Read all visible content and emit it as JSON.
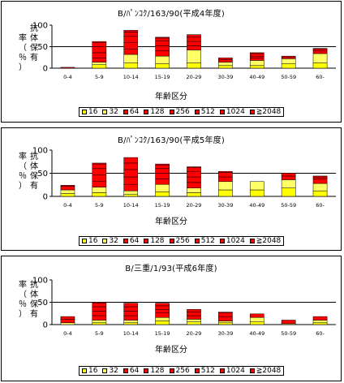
{
  "ylabel_chars": [
    "率",
    "（",
    "％",
    "）",
    "抗",
    "体",
    "保",
    "有"
  ],
  "xlabel": "年齢区分",
  "legend": [
    {
      "label": "16",
      "color": "#ffff00"
    },
    {
      "label": "32",
      "color": "#ffff66"
    },
    {
      "label": "64",
      "color": "#ff0000"
    },
    {
      "label": "128",
      "color": "#ff0000"
    },
    {
      "label": "256",
      "color": "#ff0000"
    },
    {
      "label": "512",
      "color": "#ff0000"
    },
    {
      "label": "1024",
      "color": "#ff0000"
    },
    {
      "label": "≧2048",
      "color": "#ff0000"
    }
  ],
  "chart_data": [
    {
      "type": "bar",
      "stacked": true,
      "title": "B/ﾊﾟﾝｺｸ/163/90(平成4年度)",
      "xlabel": "年齢区分",
      "ylabel": "抗体保有率(%)",
      "ylim": [
        0,
        100
      ],
      "yticks": [
        0,
        50,
        100
      ],
      "reference_line": 50,
      "categories": [
        "0-4",
        "5-9",
        "10-14",
        "15-19",
        "20-29",
        "30-39",
        "40-49",
        "50-59",
        "60-"
      ],
      "series": [
        {
          "name": "16",
          "values": [
            0,
            8,
            12,
            10,
            12,
            6,
            6,
            10,
            12
          ]
        },
        {
          "name": "32",
          "values": [
            0,
            6,
            20,
            18,
            30,
            8,
            12,
            12,
            22
          ]
        },
        {
          "name": "64",
          "values": [
            2,
            10,
            12,
            12,
            10,
            6,
            6,
            4,
            6
          ]
        },
        {
          "name": "128",
          "values": [
            0,
            12,
            16,
            12,
            10,
            4,
            4,
            2,
            4
          ]
        },
        {
          "name": "256",
          "values": [
            0,
            14,
            14,
            12,
            10,
            0,
            6,
            0,
            2
          ]
        },
        {
          "name": "512",
          "values": [
            0,
            10,
            10,
            6,
            6,
            0,
            2,
            0,
            0
          ]
        },
        {
          "name": "1024",
          "values": [
            0,
            2,
            4,
            2,
            0,
            0,
            0,
            0,
            0
          ]
        },
        {
          "name": "≧2048",
          "values": [
            0,
            0,
            0,
            0,
            0,
            0,
            0,
            0,
            0
          ]
        }
      ]
    },
    {
      "type": "bar",
      "stacked": true,
      "title": "B/ﾊﾟﾝｺｸ/163/90(平成5年度)",
      "xlabel": "年齢区分",
      "ylabel": "抗体保有率(%)",
      "ylim": [
        0,
        100
      ],
      "yticks": [
        0,
        50,
        100
      ],
      "reference_line": 50,
      "categories": [
        "0-4",
        "5-9",
        "10-14",
        "15-19",
        "20-29",
        "30-39",
        "40-49",
        "50-59",
        "60-"
      ],
      "series": [
        {
          "name": "16",
          "values": [
            6,
            8,
            4,
            10,
            8,
            14,
            14,
            18,
            12
          ]
        },
        {
          "name": "32",
          "values": [
            8,
            12,
            8,
            16,
            10,
            18,
            18,
            18,
            16
          ]
        },
        {
          "name": "64",
          "values": [
            8,
            12,
            14,
            12,
            12,
            10,
            0,
            8,
            10
          ]
        },
        {
          "name": "128",
          "values": [
            2,
            14,
            16,
            12,
            12,
            10,
            0,
            6,
            4
          ]
        },
        {
          "name": "256",
          "values": [
            0,
            14,
            16,
            10,
            12,
            2,
            0,
            0,
            2
          ]
        },
        {
          "name": "512",
          "values": [
            0,
            10,
            14,
            8,
            8,
            0,
            0,
            0,
            0
          ]
        },
        {
          "name": "1024",
          "values": [
            0,
            2,
            12,
            2,
            2,
            0,
            0,
            0,
            0
          ]
        },
        {
          "name": "≧2048",
          "values": [
            0,
            0,
            0,
            0,
            0,
            0,
            0,
            0,
            0
          ]
        }
      ]
    },
    {
      "type": "bar",
      "stacked": true,
      "title": "B/三重/1/93(平成6年度)",
      "xlabel": "年齢区分",
      "ylabel": "抗体保有率(%)",
      "ylim": [
        0,
        100
      ],
      "yticks": [
        0,
        50,
        100
      ],
      "reference_line": 50,
      "categories": [
        "0-4",
        "5-9",
        "10-14",
        "15-19",
        "20-29",
        "30-39",
        "40-49",
        "50-59",
        "60-"
      ],
      "series": [
        {
          "name": "16",
          "values": [
            0,
            4,
            4,
            8,
            6,
            4,
            6,
            0,
            4
          ]
        },
        {
          "name": "32",
          "values": [
            4,
            6,
            6,
            8,
            6,
            4,
            10,
            2,
            6
          ]
        },
        {
          "name": "64",
          "values": [
            8,
            10,
            10,
            10,
            8,
            10,
            8,
            8,
            8
          ]
        },
        {
          "name": "128",
          "values": [
            6,
            10,
            10,
            8,
            8,
            8,
            0,
            0,
            0
          ]
        },
        {
          "name": "256",
          "values": [
            0,
            10,
            10,
            8,
            6,
            2,
            0,
            0,
            0
          ]
        },
        {
          "name": "512",
          "values": [
            0,
            8,
            8,
            6,
            0,
            0,
            0,
            0,
            0
          ]
        },
        {
          "name": "1024",
          "values": [
            0,
            2,
            0,
            0,
            0,
            0,
            0,
            0,
            0
          ]
        },
        {
          "name": "≧2048",
          "values": [
            0,
            0,
            0,
            0,
            0,
            0,
            0,
            0,
            0
          ]
        }
      ]
    }
  ]
}
